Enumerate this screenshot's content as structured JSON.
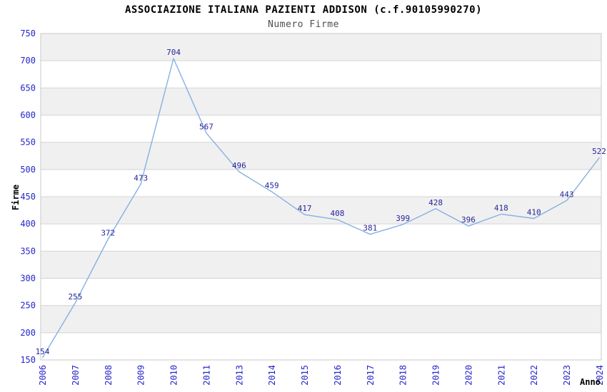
{
  "chart_data": {
    "type": "line",
    "title": "ASSOCIAZIONE ITALIANA PAZIENTI ADDISON (c.f.90105990270)",
    "subtitle": "Numero Firme",
    "xlabel": "Anno",
    "ylabel": "Firme",
    "categories": [
      "2006",
      "2007",
      "2008",
      "2009",
      "2010",
      "2011",
      "2013",
      "2014",
      "2015",
      "2016",
      "2017",
      "2018",
      "2019",
      "2020",
      "2021",
      "2022",
      "2023",
      "2024"
    ],
    "values": [
      154,
      255,
      372,
      473,
      704,
      567,
      496,
      459,
      417,
      408,
      381,
      399,
      428,
      396,
      418,
      410,
      443,
      522
    ],
    "ylim": [
      150,
      750
    ],
    "ytick_step": 50,
    "grid": true,
    "legend_position": "none",
    "show_value_labels": true,
    "colors": {
      "line": "#85b1e2",
      "value_labels": "#26269b",
      "tick_labels": "#2626cc",
      "band_gray": "#f0f0f0",
      "band_white": "#ffffff",
      "gridline": "#d4d4d4",
      "plot_border": "#c9c9c9",
      "title": "#000000",
      "subtitle": "#4d4d4d",
      "axis_titles": "#000000"
    }
  }
}
